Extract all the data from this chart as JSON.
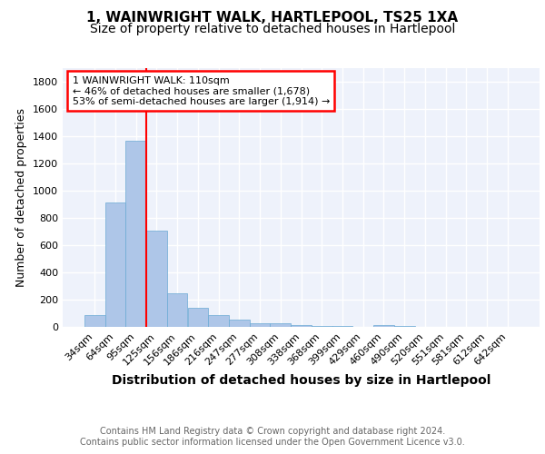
{
  "title1": "1, WAINWRIGHT WALK, HARTLEPOOL, TS25 1XA",
  "title2": "Size of property relative to detached houses in Hartlepool",
  "xlabel": "Distribution of detached houses by size in Hartlepool",
  "ylabel": "Number of detached properties",
  "categories": [
    "34sqm",
    "64sqm",
    "95sqm",
    "125sqm",
    "156sqm",
    "186sqm",
    "216sqm",
    "247sqm",
    "277sqm",
    "308sqm",
    "338sqm",
    "368sqm",
    "399sqm",
    "429sqm",
    "460sqm",
    "490sqm",
    "520sqm",
    "551sqm",
    "581sqm",
    "612sqm",
    "642sqm"
  ],
  "values": [
    85,
    915,
    1365,
    710,
    248,
    140,
    88,
    55,
    25,
    28,
    15,
    10,
    10,
    0,
    15,
    5,
    0,
    0,
    0,
    0,
    0
  ],
  "bar_color": "#aec6e8",
  "bar_edge_color": "#6aaad4",
  "property_line_x": 2.5,
  "annotation_text": "1 WAINWRIGHT WALK: 110sqm\n← 46% of detached houses are smaller (1,678)\n53% of semi-detached houses are larger (1,914) →",
  "annotation_box_color": "white",
  "annotation_box_edge": "red",
  "red_line_color": "red",
  "footer": "Contains HM Land Registry data © Crown copyright and database right 2024.\nContains public sector information licensed under the Open Government Licence v3.0.",
  "ylim": [
    0,
    1900
  ],
  "background_color": "#eef2fb",
  "grid_color": "white",
  "title1_fontsize": 11,
  "title2_fontsize": 10,
  "xlabel_fontsize": 10,
  "ylabel_fontsize": 9,
  "tick_fontsize": 8,
  "annot_fontsize": 8,
  "footer_fontsize": 7
}
